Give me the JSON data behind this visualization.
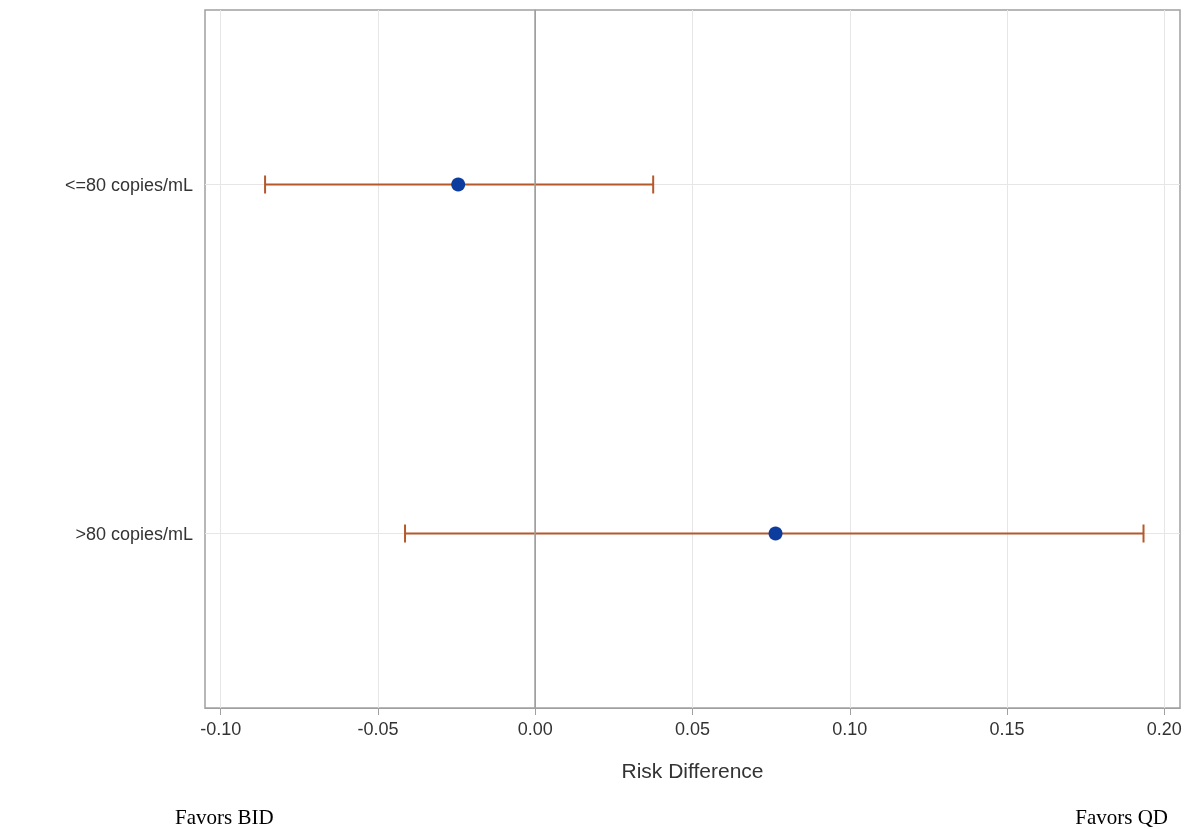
{
  "chart_data": {
    "type": "scatter",
    "orientation": "horizontal",
    "xlabel": "Risk Difference",
    "categories": [
      "<=80 copies/mL",
      ">80 copies/mL"
    ],
    "series": [
      {
        "color": "#0b3c9e",
        "values": [
          -0.0245,
          0.0764
        ],
        "errors": [
          [
            -0.0859,
            0.0375
          ],
          [
            -0.0414,
            0.1934
          ]
        ]
      }
    ],
    "xlim": [
      -0.105,
      0.205
    ],
    "xticks": [
      {
        "value": -0.1,
        "label": "-0.10"
      },
      {
        "value": -0.05,
        "label": "-0.05"
      },
      {
        "value": 0,
        "label": "0.00"
      },
      {
        "value": 0.05,
        "label": "0.05"
      },
      {
        "value": 0.1,
        "label": "0.10"
      },
      {
        "value": 0.15,
        "label": "0.15"
      },
      {
        "value": 0.2,
        "label": "0.20"
      }
    ],
    "ref_lines": [
      {
        "axis": "x",
        "value": 0,
        "color": "#a0a0a0"
      }
    ],
    "grid": true,
    "marker": "circle",
    "annotations": [
      "Favors BID",
      "Favors QD"
    ]
  }
}
